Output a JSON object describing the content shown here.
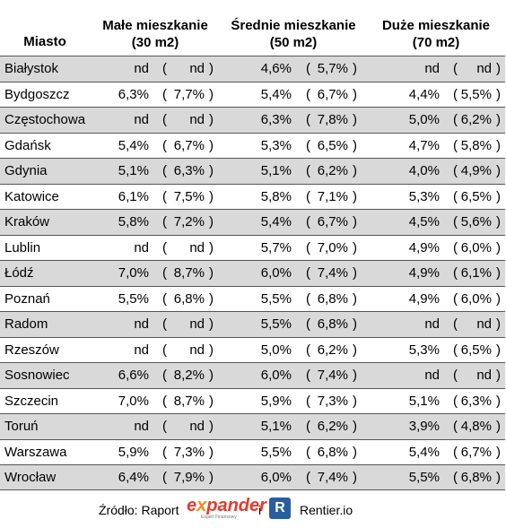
{
  "table": {
    "header": [
      "Miasto",
      [
        "Małe mieszkanie",
        "(30 m2)"
      ],
      [
        "Średnie mieszkanie",
        "(50 m2)"
      ],
      [
        "Duże mieszkanie",
        "(70 m2)"
      ]
    ],
    "brackets": [
      "(",
      ")"
    ],
    "rows": [
      [
        "Białystok",
        [
          "nd",
          "nd"
        ],
        [
          "4,6%",
          "5,7%"
        ],
        [
          "nd",
          "nd"
        ]
      ],
      [
        "Bydgoszcz",
        [
          "6,3%",
          "7,7%"
        ],
        [
          "5,4%",
          "6,7%"
        ],
        [
          "4,4%",
          "5,5%"
        ]
      ],
      [
        "Częstochowa",
        [
          "nd",
          "nd"
        ],
        [
          "6,3%",
          "7,8%"
        ],
        [
          "5,0%",
          "6,2%"
        ]
      ],
      [
        "Gdańsk",
        [
          "5,4%",
          "6,7%"
        ],
        [
          "5,3%",
          "6,5%"
        ],
        [
          "4,7%",
          "5,8%"
        ]
      ],
      [
        "Gdynia",
        [
          "5,1%",
          "6,3%"
        ],
        [
          "5,1%",
          "6,2%"
        ],
        [
          "4,0%",
          "4,9%"
        ]
      ],
      [
        "Katowice",
        [
          "6,1%",
          "7,5%"
        ],
        [
          "5,8%",
          "7,1%"
        ],
        [
          "5,3%",
          "6,5%"
        ]
      ],
      [
        "Kraków",
        [
          "5,8%",
          "7,2%"
        ],
        [
          "5,4%",
          "6,7%"
        ],
        [
          "4,5%",
          "5,6%"
        ]
      ],
      [
        "Lublin",
        [
          "nd",
          "nd"
        ],
        [
          "5,7%",
          "7,0%"
        ],
        [
          "4,9%",
          "6,0%"
        ]
      ],
      [
        "Łódź",
        [
          "7,0%",
          "8,7%"
        ],
        [
          "6,0%",
          "7,4%"
        ],
        [
          "4,9%",
          "6,1%"
        ]
      ],
      [
        "Poznań",
        [
          "5,5%",
          "6,8%"
        ],
        [
          "5,5%",
          "6,8%"
        ],
        [
          "4,9%",
          "6,0%"
        ]
      ],
      [
        "Radom",
        [
          "nd",
          "nd"
        ],
        [
          "5,5%",
          "6,8%"
        ],
        [
          "nd",
          "nd"
        ]
      ],
      [
        "Rzeszów",
        [
          "nd",
          "nd"
        ],
        [
          "5,0%",
          "6,2%"
        ],
        [
          "5,3%",
          "6,5%"
        ]
      ],
      [
        "Sosnowiec",
        [
          "6,6%",
          "8,2%"
        ],
        [
          "6,0%",
          "7,4%"
        ],
        [
          "nd",
          "nd"
        ]
      ],
      [
        "Szczecin",
        [
          "7,0%",
          "8,7%"
        ],
        [
          "5,9%",
          "7,3%"
        ],
        [
          "5,1%",
          "6,3%"
        ]
      ],
      [
        "Toruń",
        [
          "nd",
          "nd"
        ],
        [
          "5,1%",
          "6,2%"
        ],
        [
          "3,9%",
          "4,8%"
        ]
      ],
      [
        "Warszawa",
        [
          "5,9%",
          "7,3%"
        ],
        [
          "5,5%",
          "6,8%"
        ],
        [
          "5,4%",
          "6,7%"
        ]
      ],
      [
        "Wrocław",
        [
          "6,4%",
          "7,9%"
        ],
        [
          "6,0%",
          "7,4%"
        ],
        [
          "5,5%",
          "6,8%"
        ]
      ]
    ]
  },
  "footer": {
    "source": "Źródło: Raport",
    "brand_start": "e",
    "brand_mid": "x",
    "brand_end": "pander",
    "brand_sub": "Expert Finansowy",
    "joiner": "i",
    "logo_letter": "R",
    "partner": "Rentier.io"
  }
}
